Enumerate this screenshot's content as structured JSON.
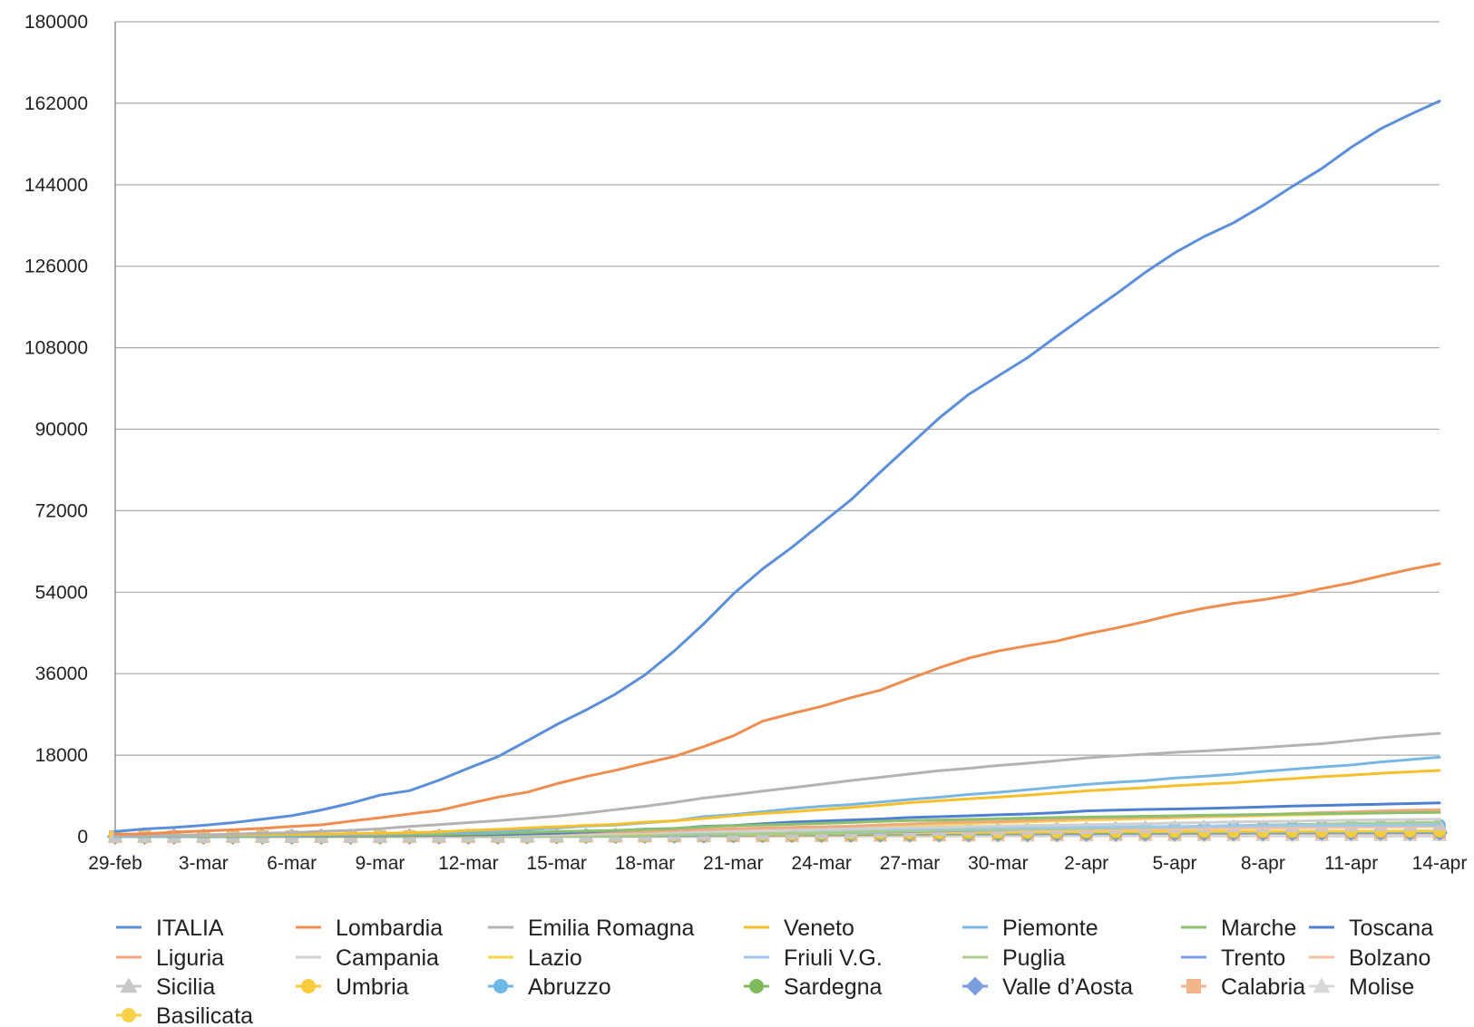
{
  "chart_data": {
    "type": "line",
    "title": "",
    "xlabel": "",
    "ylabel": "",
    "ylim": [
      0,
      180000
    ],
    "yticks": [
      0,
      18000,
      36000,
      54000,
      72000,
      90000,
      108000,
      126000,
      144000,
      162000,
      180000
    ],
    "ytick_labels": [
      "0",
      "18000",
      "36000",
      "54000",
      "72000",
      "90000",
      "108000",
      "126000",
      "144000",
      "162000",
      "180000"
    ],
    "grid": true,
    "legend_position": "bottom",
    "x": [
      "29-feb",
      "1-mar",
      "2-mar",
      "3-mar",
      "4-mar",
      "5-mar",
      "6-mar",
      "7-mar",
      "8-mar",
      "9-mar",
      "10-mar",
      "11-mar",
      "12-mar",
      "13-mar",
      "14-mar",
      "15-mar",
      "16-mar",
      "17-mar",
      "18-mar",
      "19-mar",
      "20-mar",
      "21-mar",
      "22-mar",
      "23-mar",
      "24-mar",
      "25-mar",
      "26-mar",
      "27-mar",
      "28-mar",
      "29-mar",
      "30-mar",
      "31-mar",
      "1-apr",
      "2-apr",
      "3-apr",
      "4-apr",
      "5-apr",
      "6-apr",
      "7-apr",
      "8-apr",
      "9-apr",
      "10-apr",
      "11-apr",
      "12-apr",
      "13-apr",
      "14-apr"
    ],
    "xtick_labels": [
      "29-feb",
      "3-mar",
      "6-mar",
      "9-mar",
      "12-mar",
      "15-mar",
      "18-mar",
      "21-mar",
      "24-mar",
      "27-mar",
      "30-mar",
      "2-apr",
      "5-apr",
      "8-apr",
      "11-apr",
      "14-apr"
    ],
    "series": [
      {
        "name": "ITALIA",
        "color": "#5b8fd9",
        "marker": "none",
        "values": [
          1128,
          1694,
          2036,
          2502,
          3089,
          3858,
          4636,
          5883,
          7375,
          9172,
          10149,
          12462,
          15113,
          17660,
          21157,
          24747,
          27980,
          31506,
          35713,
          41035,
          47021,
          53578,
          59138,
          63927,
          69176,
          74386,
          80539,
          86498,
          92472,
          97689,
          101739,
          105792,
          110574,
          115242,
          119827,
          124632,
          128948,
          132547,
          135586,
          139422,
          143626,
          147577,
          152271,
          156363,
          159516,
          162488
        ]
      },
      {
        "name": "Lombardia",
        "color": "#ee8d4e",
        "marker": "none",
        "values": [
          531,
          615,
          984,
          1254,
          1520,
          1820,
          2251,
          2612,
          3420,
          4189,
          5000,
          5800,
          7280,
          8725,
          9820,
          11685,
          13272,
          14649,
          16220,
          17713,
          19884,
          22264,
          25515,
          27206,
          28761,
          30703,
          32346,
          34889,
          37298,
          39415,
          41007,
          42161,
          43208,
          44773,
          46065,
          47520,
          49118,
          50455,
          51534,
          52325,
          53414,
          54802,
          56048,
          57592,
          59052,
          60314
        ]
      },
      {
        "name": "Emilia Romagna",
        "color": "#b3b3b3",
        "marker": "none",
        "values": [
          217,
          285,
          335,
          420,
          544,
          761,
          870,
          1180,
          1386,
          1739,
          2263,
          2644,
          3093,
          3522,
          4030,
          4525,
          5214,
          5968,
          6705,
          7555,
          8531,
          9254,
          10054,
          10816,
          11588,
          12383,
          13119,
          13841,
          14568,
          15096,
          15723,
          16217,
          16773,
          17403,
          17831,
          18201,
          18613,
          18930,
          19285,
          19674,
          20129,
          20531,
          21161,
          21837,
          22349,
          22824
        ]
      },
      {
        "name": "Veneto",
        "color": "#f5c02b",
        "marker": "none",
        "values": [
          191,
          263,
          273,
          307,
          360,
          407,
          488,
          543,
          670,
          744,
          856,
          1023,
          1384,
          1595,
          1937,
          2172,
          2473,
          2704,
          3214,
          3484,
          4031,
          4617,
          5122,
          5505,
          5948,
          6442,
          6935,
          7498,
          7930,
          8358,
          8724,
          9155,
          9625,
          10111,
          10464,
          10824,
          11226,
          11588,
          11925,
          12402,
          12812,
          13249,
          13592,
          14001,
          14316,
          14624
        ]
      },
      {
        "name": "Piemonte",
        "color": "#78b6e4",
        "marker": "none",
        "values": [
          3,
          51,
          56,
          82,
          143,
          207,
          243,
          360,
          401,
          580,
          720,
          840,
          941,
          1111,
          1516,
          1897,
          2341,
          2552,
          3061,
          3506,
          4420,
          4861,
          5515,
          6193,
          6708,
          7092,
          7646,
          8206,
          8712,
          9301,
          9795,
          10353,
          10959,
          11533,
          11999,
          12362,
          12947,
          13343,
          13793,
          14395,
          14893,
          15393,
          15830,
          16494,
          17025,
          17558
        ]
      },
      {
        "name": "Marche",
        "color": "#8bc06c",
        "marker": "none",
        "values": [
          6,
          9,
          25,
          46,
          61,
          84,
          124,
          199,
          273,
          323,
          392,
          479,
          592,
          725,
          922,
          1133,
          1242,
          1371,
          1568,
          1826,
          2153,
          2419,
          2569,
          2736,
          2934,
          3125,
          3373,
          3558,
          3684,
          3802,
          3951,
          4114,
          4226,
          4323,
          4410,
          4512,
          4601,
          4729,
          4814,
          4916,
          5005,
          5085,
          5159,
          5231,
          5299,
          5363
        ]
      },
      {
        "name": "Toscana",
        "color": "#4f7fd0",
        "marker": "none",
        "values": [
          11,
          13,
          19,
          26,
          38,
          61,
          79,
          113,
          166,
          208,
          264,
          320,
          364,
          454,
          630,
          781,
          1024,
          1330,
          1654,
          1793,
          2277,
          2461,
          2849,
          3217,
          3450,
          3680,
          3917,
          4219,
          4412,
          4608,
          4822,
          5018,
          5273,
          5671,
          5847,
          6005,
          6099,
          6233,
          6380,
          6568,
          6745,
          6885,
          7027,
          7166,
          7306,
          7452
        ]
      },
      {
        "name": "Liguria",
        "color": "#f0a97f",
        "marker": "none",
        "values": [
          19,
          21,
          23,
          25,
          25,
          26,
          45,
          52,
          62,
          91,
          167,
          221,
          258,
          448,
          530,
          668,
          886,
          1061,
          1155,
          1379,
          1585,
          1760,
          1930,
          2061,
          2185,
          2337,
          2588,
          2791,
          3086,
          3254,
          3328,
          3615,
          3785,
          4046,
          4167,
          4270,
          4360,
          4557,
          4656,
          4827,
          5094,
          5297,
          5480,
          5685,
          5849,
          5959
        ]
      },
      {
        "name": "Campania",
        "color": "#d0d0d0",
        "marker": "none",
        "values": [
          13,
          17,
          17,
          30,
          31,
          51,
          60,
          101,
          120,
          127,
          154,
          220,
          264,
          340,
          400,
          460,
          602,
          702,
          906,
          1026,
          1101,
          1199,
          1310,
          1456,
          1592,
          1759,
          1850,
          2003,
          2092,
          2231,
          2352,
          2456,
          2538,
          2657,
          2755,
          2853,
          3006,
          3101,
          3246,
          3338,
          3410,
          3517,
          3623,
          3729,
          3791,
          3848
        ]
      },
      {
        "name": "Lazio",
        "color": "#f7d44c",
        "marker": "none",
        "values": [
          3,
          6,
          6,
          7,
          17,
          20,
          30,
          44,
          64,
          102,
          116,
          150,
          200,
          300,
          350,
          430,
          513,
          644,
          782,
          991,
          1209,
          1394,
          1540,
          1728,
          1908,
          2095,
          2336,
          2552,
          2706,
          2914,
          3095,
          3264,
          3462,
          3654,
          3814,
          3973,
          4158,
          4343,
          4460,
          4623,
          4788,
          4936,
          5081,
          5225,
          5367,
          5476
        ]
      },
      {
        "name": "Friuli V.G.",
        "color": "#9ec8ec",
        "marker": "none",
        "values": [
          0,
          0,
          18,
          18,
          18,
          18,
          24,
          40,
          73,
          110,
          126,
          148,
          200,
          246,
          310,
          386,
          444,
          605,
          820,
          883,
          1032,
          1228,
          1342,
          1426,
          1501,
          1593,
          1690,
          1732,
          1851,
          1911,
          1977,
          2010,
          2059,
          2123,
          2156,
          2204,
          2235,
          2278,
          2343,
          2400,
          2434,
          2456,
          2491,
          2515,
          2542,
          2570
        ]
      },
      {
        "name": "Puglia",
        "color": "#a8cf8a",
        "marker": "none",
        "values": [
          1,
          1,
          1,
          3,
          3,
          6,
          7,
          16,
          26,
          35,
          46,
          56,
          74,
          104,
          121,
          155,
          176,
          229,
          325,
          418,
          542,
          580,
          630,
          715,
          825,
          944,
          1120,
          1240,
          1385,
          1459,
          1549,
          1637,
          1736,
          1826,
          1968,
          2025,
          2135,
          2246,
          2357,
          2501,
          2603,
          2738,
          2924,
          2981,
          3058,
          3119
        ]
      },
      {
        "name": "Trento",
        "color": "#7d9fe3",
        "marker": "none",
        "values": [
          0,
          0,
          0,
          2,
          4,
          6,
          6,
          9,
          9,
          16,
          25,
          36,
          55,
          67,
          93,
          118,
          153,
          191,
          249,
          325,
          423,
          531,
          624,
          717,
          791,
          913,
          1009,
          1110,
          1236,
          1336,
          1481,
          1656,
          1761,
          1859,
          1962,
          2075,
          2184,
          2300,
          2409,
          2541,
          2664,
          2735,
          2848,
          2922,
          3015,
          3095
        ]
      },
      {
        "name": "Bolzano",
        "color": "#f5c0a0",
        "marker": "none",
        "values": [
          1,
          1,
          1,
          1,
          1,
          1,
          1,
          9,
          11,
          13,
          16,
          38,
          45,
          56,
          90,
          103,
          169,
          220,
          302,
          362,
          456,
          542,
          605,
          665,
          758,
          856,
          941,
          1008,
          1108,
          1179,
          1231,
          1308,
          1392,
          1454,
          1563,
          1639,
          1694,
          1754,
          1839,
          1906,
          1956,
          2013,
          2073,
          2124,
          2186,
          2247
        ]
      },
      {
        "name": "Sicilia",
        "color": "#c8c8c8",
        "marker": "triangle",
        "values": [
          4,
          6,
          7,
          8,
          14,
          15,
          15,
          16,
          18,
          30,
          53,
          83,
          115,
          130,
          165,
          188,
          236,
          312,
          368,
          438,
          503,
          578,
          696,
          806,
          905,
          1021,
          1183,
          1275,
          1463,
          1532,
          1610,
          1710,
          1806,
          1868,
          1914,
          2023,
          2096,
          2176,
          2227,
          2236,
          2255,
          2364,
          2434,
          2493,
          2533,
          2586
        ]
      },
      {
        "name": "Umbria",
        "color": "#f8cc3a",
        "marker": "circle",
        "values": [
          0,
          0,
          0,
          0,
          1,
          2,
          3,
          9,
          15,
          20,
          27,
          41,
          61,
          75,
          108,
          138,
          183,
          209,
          249,
          351,
          431,
          504,
          521,
          595,
          718,
          765,
          814,
          850,
          882,
          943,
          972,
          1001,
          1040,
          1109,
          1123,
          1131,
          1141,
          1160,
          1170,
          1177,
          1190,
          1206,
          1228,
          1233,
          1241,
          1253
        ]
      },
      {
        "name": "Abruzzo",
        "color": "#6fb7e8",
        "marker": "circle",
        "values": [
          0,
          0,
          0,
          2,
          2,
          5,
          6,
          9,
          11,
          11,
          30,
          38,
          48,
          68,
          84,
          112,
          137,
          176,
          229,
          255,
          351,
          434,
          532,
          628,
          741,
          883,
          964,
          1031,
          1133,
          1293,
          1388,
          1475,
          1582,
          1678,
          1756,
          1873,
          1962,
          2052,
          2109,
          2174,
          2212,
          2262,
          2340,
          2410,
          2489,
          2519
        ]
      },
      {
        "name": "Sardegna",
        "color": "#7fbb5e",
        "marker": "circle",
        "values": [
          0,
          0,
          0,
          1,
          1,
          2,
          3,
          6,
          7,
          19,
          32,
          40,
          47,
          61,
          69,
          73,
          85,
          132,
          162,
          191,
          268,
          339,
          395,
          457,
          511,
          567,
          599,
          645,
          693,
          730,
          760,
          808,
          852,
          889,
          928,
          962,
          990,
          1006,
          1045,
          1077,
          1092,
          1108,
          1131,
          1147,
          1151,
          1162
        ]
      },
      {
        "name": "Valle d’Aosta",
        "color": "#7b9ee0",
        "marker": "diamond",
        "values": [
          0,
          0,
          0,
          0,
          0,
          0,
          0,
          0,
          0,
          7,
          17,
          17,
          19,
          33,
          68,
          117,
          159,
          186,
          209,
          236,
          263,
          343,
          371,
          413,
          443,
          474,
          489,
          553,
          566,
          593,
          611,
          623,
          636,
          660,
          698,
          724,
          738,
          765,
          777,
          807,
          825,
          839,
          845,
          863,
          869,
          878
        ]
      },
      {
        "name": "Calabria",
        "color": "#f2b48a",
        "marker": "square",
        "values": [
          0,
          1,
          1,
          1,
          1,
          1,
          1,
          1,
          1,
          3,
          13,
          19,
          20,
          31,
          47,
          60,
          81,
          90,
          113,
          128,
          157,
          194,
          230,
          263,
          295,
          350,
          388,
          419,
          465,
          489,
          545,
          563,
          595,
          612,
          642,
          660,
          674,
          698,
          726,
          745,
          755,
          767,
          777,
          792,
          810,
          817
        ]
      },
      {
        "name": "Molise",
        "color": "#d8d8d8",
        "marker": "triangle",
        "values": [
          0,
          0,
          0,
          0,
          0,
          0,
          0,
          0,
          0,
          0,
          5,
          10,
          13,
          15,
          18,
          18,
          18,
          20,
          30,
          36,
          51,
          55,
          73,
          78,
          93,
          104,
          121,
          137,
          148,
          162,
          163,
          168,
          175,
          187,
          203,
          212,
          218,
          225,
          227,
          230,
          234,
          244,
          251,
          253,
          259,
          261
        ]
      },
      {
        "name": "Basilicata",
        "color": "#f8d14a",
        "marker": "circle",
        "values": [
          0,
          0,
          0,
          1,
          2,
          2,
          2,
          3,
          3,
          3,
          3,
          3,
          5,
          6,
          9,
          11,
          14,
          18,
          26,
          27,
          32,
          42,
          48,
          57,
          70,
          83,
          104,
          120,
          132,
          148,
          172,
          180,
          197,
          208,
          213,
          225,
          231,
          245,
          263,
          271,
          283,
          290,
          308,
          313,
          316,
          325
        ]
      }
    ]
  }
}
